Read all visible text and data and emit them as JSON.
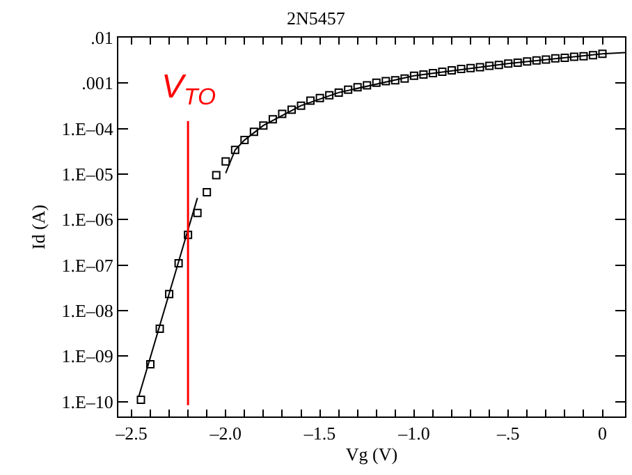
{
  "chart_data": {
    "type": "scatter",
    "title": "2N5457",
    "xlabel": "Vg (V)",
    "ylabel": "Id (A)",
    "log": "y",
    "xlim": [
      -2.57,
      0.12
    ],
    "ylim": [
      4.7e-11,
      0.01
    ],
    "xticks": [
      {
        "value": -2.5,
        "label": "–2.5"
      },
      {
        "value": -2.4,
        "label": null
      },
      {
        "value": -2.3,
        "label": null
      },
      {
        "value": -2.2,
        "label": null
      },
      {
        "value": -2.1,
        "label": null
      },
      {
        "value": -2.0,
        "label": "–2.0"
      },
      {
        "value": -1.9,
        "label": null
      },
      {
        "value": -1.8,
        "label": null
      },
      {
        "value": -1.7,
        "label": null
      },
      {
        "value": -1.6,
        "label": null
      },
      {
        "value": -1.5,
        "label": "–1.5"
      },
      {
        "value": -1.4,
        "label": null
      },
      {
        "value": -1.3,
        "label": null
      },
      {
        "value": -1.2,
        "label": null
      },
      {
        "value": -1.1,
        "label": null
      },
      {
        "value": -1.0,
        "label": "–1.0"
      },
      {
        "value": -0.9,
        "label": null
      },
      {
        "value": -0.8,
        "label": null
      },
      {
        "value": -0.7,
        "label": null
      },
      {
        "value": -0.6,
        "label": null
      },
      {
        "value": -0.5,
        "label": "–.5"
      },
      {
        "value": -0.4,
        "label": null
      },
      {
        "value": -0.3,
        "label": null
      },
      {
        "value": -0.2,
        "label": null
      },
      {
        "value": -0.1,
        "label": null
      },
      {
        "value": 0,
        "label": "0"
      }
    ],
    "yticks": [
      {
        "value": 1e-10,
        "label": "1.E–10"
      },
      {
        "value": 1e-09,
        "label": "1.E–09"
      },
      {
        "value": 1e-08,
        "label": "1.E–08"
      },
      {
        "value": 1e-07,
        "label": "1.E–07"
      },
      {
        "value": 1e-06,
        "label": "1.E–06"
      },
      {
        "value": 1e-05,
        "label": "1.E–05"
      },
      {
        "value": 0.0001,
        "label": "1.E–04"
      },
      {
        "value": 0.001,
        "label": ".001"
      },
      {
        "value": 0.01,
        "label": ".01"
      }
    ],
    "series": [
      {
        "marker": "square",
        "color": "#000000",
        "x": [
          -2.45,
          -2.4,
          -2.35,
          -2.3,
          -2.25,
          -2.2,
          -2.15,
          -2.1,
          -2.05,
          -2.0,
          -1.95,
          -1.9,
          -1.85,
          -1.8,
          -1.75,
          -1.7,
          -1.65,
          -1.6,
          -1.55,
          -1.5,
          -1.45,
          -1.4,
          -1.35,
          -1.3,
          -1.25,
          -1.2,
          -1.15,
          -1.1,
          -1.05,
          -1.0,
          -0.95,
          -0.9,
          -0.85,
          -0.8,
          -0.75,
          -0.7,
          -0.65,
          -0.6,
          -0.55,
          -0.5,
          -0.45,
          -0.4,
          -0.35,
          -0.3,
          -0.25,
          -0.2,
          -0.15,
          -0.1,
          -0.05,
          0
        ],
        "values": [
          1.1e-10,
          6.6e-10,
          4e-09,
          2.3e-08,
          1.1e-07,
          4.6e-07,
          1.4e-06,
          4e-06,
          9.5e-06,
          1.9e-05,
          3.4e-05,
          5.6e-05,
          8.5e-05,
          0.000117,
          0.00016,
          0.00021,
          0.00026,
          0.00032,
          0.00041,
          0.00047,
          0.00054,
          0.00062,
          0.00072,
          0.00081,
          0.00089,
          0.00102,
          0.0011,
          0.00115,
          0.00126,
          0.00145,
          0.00155,
          0.00166,
          0.00178,
          0.0019,
          0.00204,
          0.00214,
          0.00224,
          0.0024,
          0.0025,
          0.0027,
          0.0028,
          0.003,
          0.00316,
          0.0033,
          0.0035,
          0.0036,
          0.0038,
          0.0039,
          0.0041,
          0.0044
        ]
      },
      {
        "type": "line",
        "marker": "none",
        "line_style": "solid",
        "color": "#000000",
        "x": [
          -2.46,
          -2.15
        ],
        "values": [
          1.35e-10,
          3e-06
        ]
      },
      {
        "type": "line",
        "marker": "none",
        "line_style": "solid",
        "color": "#000000",
        "x": [
          -2.0,
          -1.95,
          -1.9,
          -1.8,
          -1.6,
          -1.4,
          -1.0,
          -0.5,
          0,
          0.12
        ],
        "values": [
          1.05e-05,
          3.4e-05,
          5.6e-05,
          0.000117,
          0.00032,
          0.00062,
          0.00145,
          0.0027,
          0.0044,
          0.0047
        ]
      }
    ],
    "ref_lines": [
      {
        "axis": "x",
        "value": -2.2,
        "label": "V$_{TO}$",
        "color": "#ff0000",
        "line_style": "solid"
      }
    ]
  }
}
